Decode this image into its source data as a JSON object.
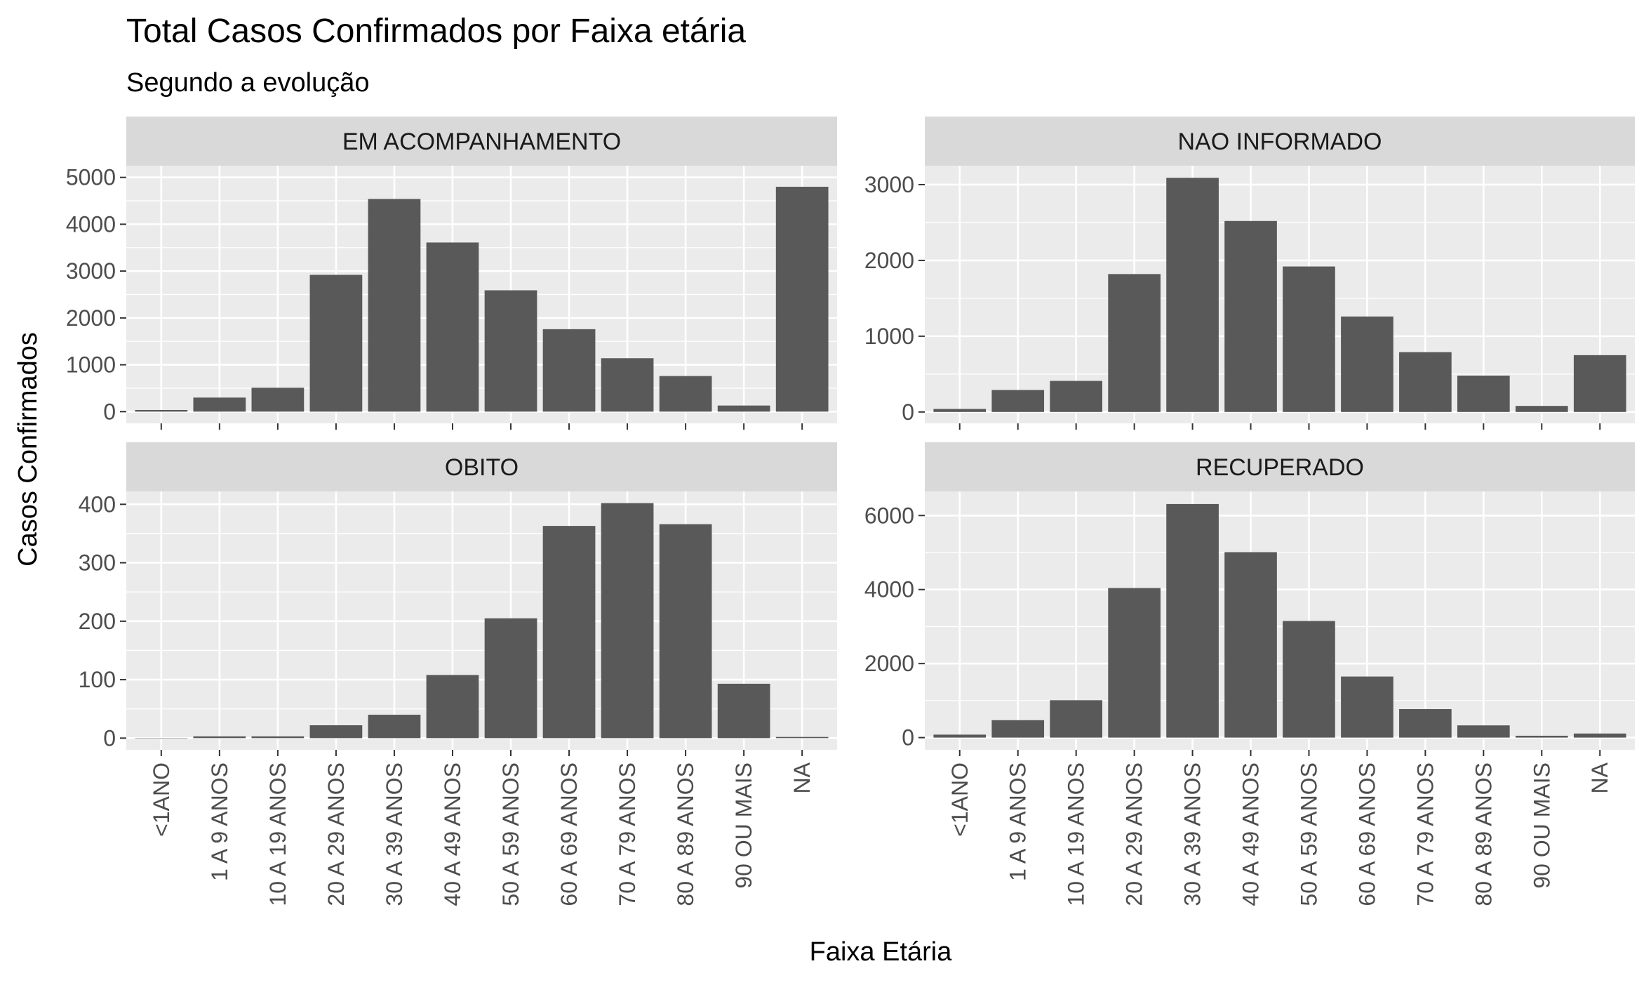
{
  "chart_data": {
    "type": "bar",
    "title": "Total Casos Confirmados por Faixa etária",
    "subtitle": "Segundo a evolução",
    "xlabel": "Faixa Etária",
    "ylabel": "Casos Confirmados",
    "grid": true,
    "categories": [
      "<1ANO",
      "1 A 9 ANOS",
      "10 A 19 ANOS",
      "20 A 29 ANOS",
      "30 A 39 ANOS",
      "40 A 49 ANOS",
      "50 A 59 ANOS",
      "60 A 69 ANOS",
      "70 A 79 ANOS",
      "80 A 89 ANOS",
      "90 OU MAIS",
      "NA"
    ],
    "panels": [
      {
        "name": "EM ACOMPANHAMENTO",
        "values": [
          35,
          300,
          510,
          2920,
          4540,
          3610,
          2590,
          1760,
          1140,
          760,
          130,
          4800
        ],
        "ylim": [
          -250,
          5250
        ],
        "yticks": [
          0,
          1000,
          2000,
          3000,
          4000,
          5000
        ]
      },
      {
        "name": "NAO INFORMADO",
        "values": [
          40,
          290,
          410,
          1820,
          3090,
          2520,
          1920,
          1260,
          790,
          480,
          80,
          750
        ],
        "ylim": [
          -150,
          3250
        ],
        "yticks": [
          0,
          1000,
          2000,
          3000
        ]
      },
      {
        "name": "OBITO",
        "values": [
          0,
          3,
          3,
          22,
          40,
          108,
          205,
          363,
          402,
          366,
          93,
          2
        ],
        "ylim": [
          -20,
          422
        ],
        "yticks": [
          0,
          100,
          200,
          300,
          400
        ]
      },
      {
        "name": "RECUPERADO",
        "values": [
          80,
          470,
          1010,
          4040,
          6310,
          5010,
          3150,
          1650,
          770,
          330,
          50,
          110
        ],
        "ylim": [
          -330,
          6650
        ],
        "yticks": [
          0,
          2000,
          4000,
          6000
        ]
      }
    ],
    "colors": {
      "bar": "#595959",
      "panel_bg": "#ebebeb",
      "strip_bg": "#d9d9d9",
      "grid": "#ffffff",
      "axis_text": "#4d4d4d"
    }
  }
}
